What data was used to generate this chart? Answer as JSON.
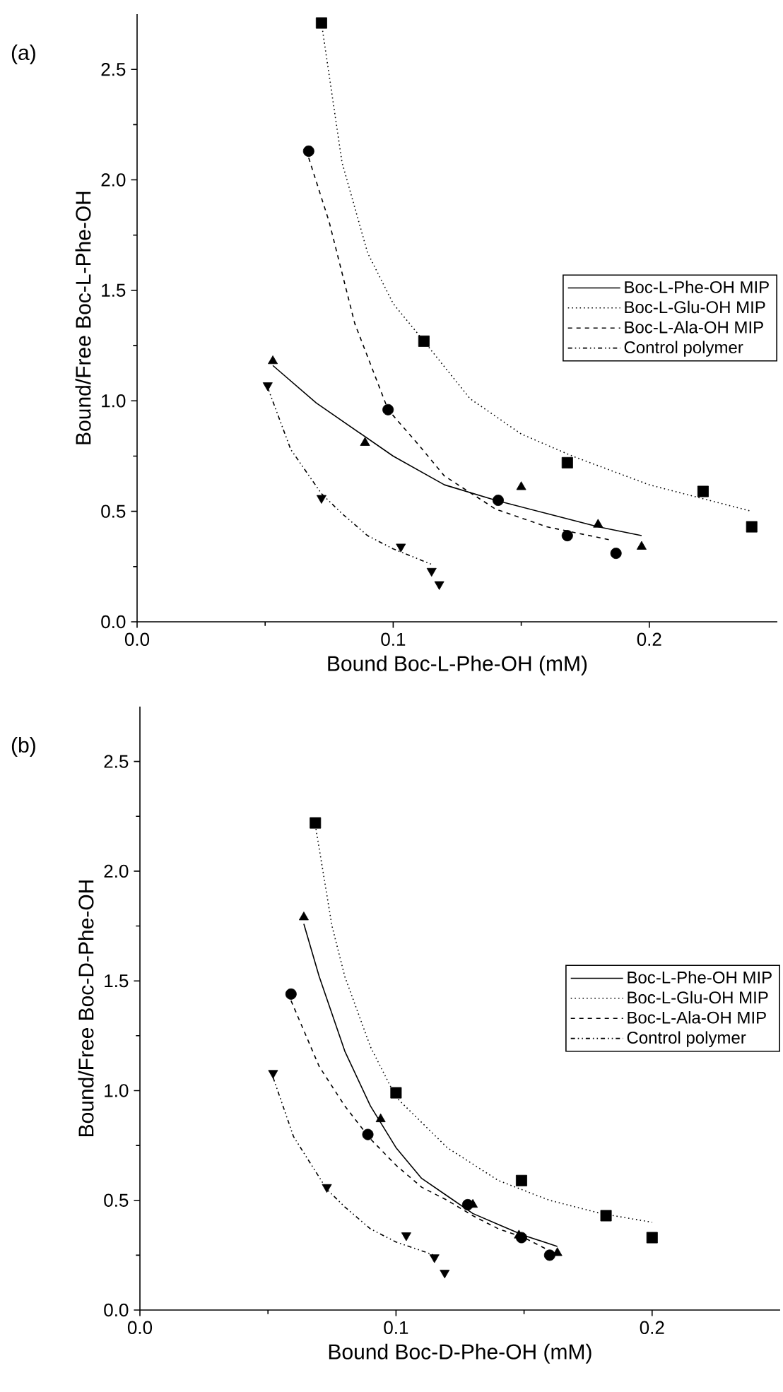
{
  "chart_data": [
    {
      "type": "scatter",
      "title": "(a)",
      "xlabel": "Bound Boc-L-Phe-OH (mM)",
      "ylabel": "Bound/Free Boc-L-Phe-OH",
      "xlim": [
        0,
        0.25
      ],
      "ylim": [
        0,
        2.75
      ],
      "xticks": [
        {
          "value": 0,
          "label": "0.0"
        },
        {
          "value": 0.1,
          "label": "0.1"
        },
        {
          "value": 0.2,
          "label": "0.2"
        }
      ],
      "yticks": [
        {
          "value": 0,
          "label": "0.0"
        },
        {
          "value": 0.5,
          "label": "0.5"
        },
        {
          "value": 1,
          "label": "1.0"
        },
        {
          "value": 1.5,
          "label": "1.5"
        },
        {
          "value": 2,
          "label": "2.0"
        },
        {
          "value": 2.5,
          "label": "2.5"
        }
      ],
      "grid": false,
      "legend": "right",
      "series": [
        {
          "type": "scatter",
          "marker": "triangle",
          "color": "#000000",
          "x": [
            0.053,
            0.089,
            0.15,
            0.18,
            0.197
          ],
          "values": [
            1.18,
            0.81,
            0.61,
            0.44,
            0.34
          ]
        },
        {
          "type": "scatter",
          "marker": "square",
          "color": "#000000",
          "x": [
            0.072,
            0.112,
            0.168,
            0.221,
            0.24
          ],
          "values": [
            2.71,
            1.27,
            0.72,
            0.59,
            0.43
          ]
        },
        {
          "type": "scatter",
          "marker": "circle",
          "color": "#000000",
          "x": [
            0.067,
            0.098,
            0.141,
            0.168,
            0.187
          ],
          "values": [
            2.13,
            0.96,
            0.55,
            0.39,
            0.31
          ]
        },
        {
          "type": "scatter",
          "marker": "triangle_down",
          "color": "#000000",
          "x": [
            0.051,
            0.072,
            0.103,
            0.115,
            0.118
          ],
          "values": [
            1.07,
            0.56,
            0.34,
            0.23,
            0.17
          ]
        },
        {
          "type": "line",
          "name": "Boc-L-Phe-OH MIP",
          "line_style": "solid",
          "marker": "none",
          "color": "#000000",
          "x": [
            0.053,
            0.07,
            0.1,
            0.12,
            0.14,
            0.16,
            0.18,
            0.197
          ],
          "values": [
            1.16,
            0.99,
            0.75,
            0.62,
            0.55,
            0.49,
            0.43,
            0.39
          ]
        },
        {
          "type": "line",
          "name": "Boc-L-Glu-OH MIP",
          "line_style": "dotted",
          "marker": "none",
          "color": "#000000",
          "x": [
            0.072,
            0.08,
            0.09,
            0.1,
            0.112,
            0.13,
            0.15,
            0.17,
            0.2,
            0.24
          ],
          "values": [
            2.71,
            2.08,
            1.67,
            1.44,
            1.27,
            1.01,
            0.85,
            0.75,
            0.62,
            0.5
          ]
        },
        {
          "type": "line",
          "name": "Boc-L-Ala-OH MIP",
          "line_style": "dashed",
          "marker": "none",
          "color": "#000000",
          "x": [
            0.067,
            0.075,
            0.085,
            0.098,
            0.11,
            0.12,
            0.14,
            0.16,
            0.185
          ],
          "values": [
            2.1,
            1.81,
            1.35,
            0.96,
            0.8,
            0.66,
            0.51,
            0.43,
            0.37
          ]
        },
        {
          "type": "line",
          "name": "Control polymer",
          "line_style": "dashdotted",
          "marker": "none",
          "color": "#000000",
          "x": [
            0.051,
            0.06,
            0.072,
            0.08,
            0.09,
            0.1,
            0.115
          ],
          "values": [
            1.06,
            0.78,
            0.58,
            0.49,
            0.39,
            0.33,
            0.26
          ]
        }
      ]
    },
    {
      "type": "scatter",
      "title": "(b)",
      "xlabel": "Bound Boc-D-Phe-OH (mM)",
      "ylabel": "Bound/Free Boc-D-Phe-OH",
      "xlim": [
        0,
        0.25
      ],
      "ylim": [
        0,
        2.75
      ],
      "xticks": [
        {
          "value": 0,
          "label": "0.0"
        },
        {
          "value": 0.1,
          "label": "0.1"
        },
        {
          "value": 0.2,
          "label": "0.2"
        }
      ],
      "yticks": [
        {
          "value": 0,
          "label": "0.0"
        },
        {
          "value": 0.5,
          "label": "0.5"
        },
        {
          "value": 1,
          "label": "1.0"
        },
        {
          "value": 1.5,
          "label": "1.5"
        },
        {
          "value": 2,
          "label": "2.0"
        },
        {
          "value": 2.5,
          "label": "2.5"
        }
      ],
      "grid": false,
      "legend": "right",
      "series": [
        {
          "type": "scatter",
          "marker": "triangle",
          "color": "#000000",
          "x": [
            0.064,
            0.094,
            0.13,
            0.148,
            0.163
          ],
          "values": [
            1.79,
            0.87,
            0.48,
            0.34,
            0.26
          ]
        },
        {
          "type": "scatter",
          "marker": "square",
          "color": "#000000",
          "x": [
            0.0685,
            0.1,
            0.149,
            0.182,
            0.2
          ],
          "values": [
            2.22,
            0.99,
            0.59,
            0.43,
            0.33
          ]
        },
        {
          "type": "scatter",
          "marker": "circle",
          "color": "#000000",
          "x": [
            0.059,
            0.089,
            0.128,
            0.149,
            0.16
          ],
          "values": [
            1.44,
            0.8,
            0.48,
            0.33,
            0.25
          ]
        },
        {
          "type": "scatter",
          "marker": "triangle_down",
          "color": "#000000",
          "x": [
            0.052,
            0.073,
            0.104,
            0.115,
            0.119
          ],
          "values": [
            1.08,
            0.56,
            0.34,
            0.24,
            0.17
          ]
        },
        {
          "type": "line",
          "name": "Boc-L-Phe-OH MIP",
          "line_style": "solid",
          "marker": "none",
          "color": "#000000",
          "x": [
            0.064,
            0.07,
            0.08,
            0.09,
            0.1,
            0.11,
            0.12,
            0.13,
            0.14,
            0.15,
            0.163
          ],
          "values": [
            1.76,
            1.52,
            1.18,
            0.93,
            0.74,
            0.6,
            0.52,
            0.44,
            0.39,
            0.34,
            0.29
          ]
        },
        {
          "type": "line",
          "name": "Boc-L-Glu-OH MIP",
          "line_style": "dotted",
          "marker": "none",
          "color": "#000000",
          "x": [
            0.0685,
            0.075,
            0.08,
            0.09,
            0.1,
            0.12,
            0.14,
            0.16,
            0.18,
            0.2
          ],
          "values": [
            2.21,
            1.75,
            1.52,
            1.2,
            0.97,
            0.74,
            0.59,
            0.5,
            0.44,
            0.4
          ]
        },
        {
          "type": "line",
          "name": "Boc-L-Ala-OH MIP",
          "line_style": "dashed",
          "marker": "none",
          "color": "#000000",
          "x": [
            0.059,
            0.07,
            0.08,
            0.09,
            0.1,
            0.11,
            0.12,
            0.13,
            0.14,
            0.15,
            0.16
          ],
          "values": [
            1.41,
            1.11,
            0.93,
            0.78,
            0.66,
            0.56,
            0.5,
            0.43,
            0.37,
            0.33,
            0.27
          ]
        },
        {
          "type": "line",
          "name": "Control polymer",
          "line_style": "dashdotted",
          "marker": "none",
          "color": "#000000",
          "x": [
            0.052,
            0.06,
            0.073,
            0.08,
            0.09,
            0.1,
            0.115
          ],
          "values": [
            1.06,
            0.79,
            0.55,
            0.47,
            0.37,
            0.31,
            0.25
          ]
        }
      ]
    }
  ]
}
